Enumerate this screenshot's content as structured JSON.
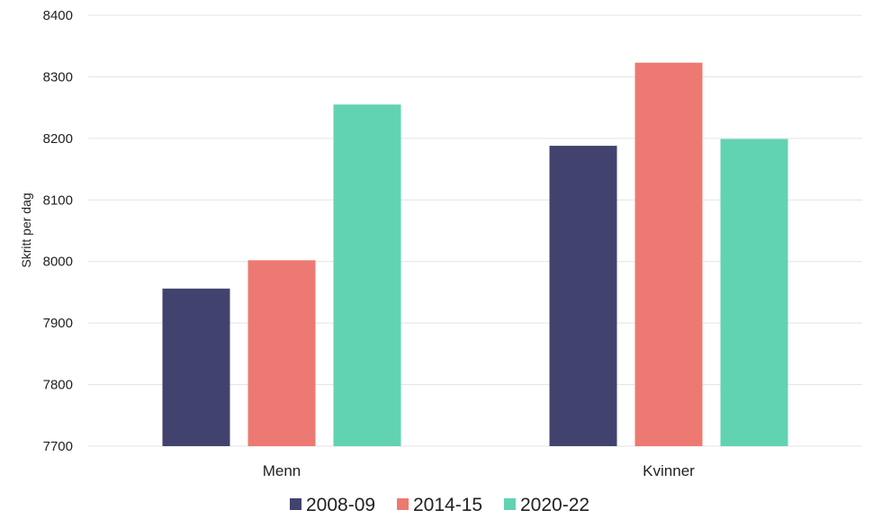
{
  "chart_data": {
    "type": "bar",
    "title": "",
    "xlabel": "",
    "ylabel": "Skritt per dag",
    "ylim": [
      7700,
      8400
    ],
    "yticks": [
      7700,
      7800,
      7900,
      8000,
      8100,
      8200,
      8300,
      8400
    ],
    "grid": true,
    "legend_position": "bottom",
    "categories": [
      "Menn",
      "Kvinner"
    ],
    "series": [
      {
        "name": "2008-09",
        "color": "#41436e",
        "values": [
          7956,
          8188
        ]
      },
      {
        "name": "2014-15",
        "color": "#ec7a72",
        "values": [
          8002,
          8323
        ]
      },
      {
        "name": "2020-22",
        "color": "#62d3b2",
        "values": [
          8255,
          8199
        ]
      }
    ]
  }
}
